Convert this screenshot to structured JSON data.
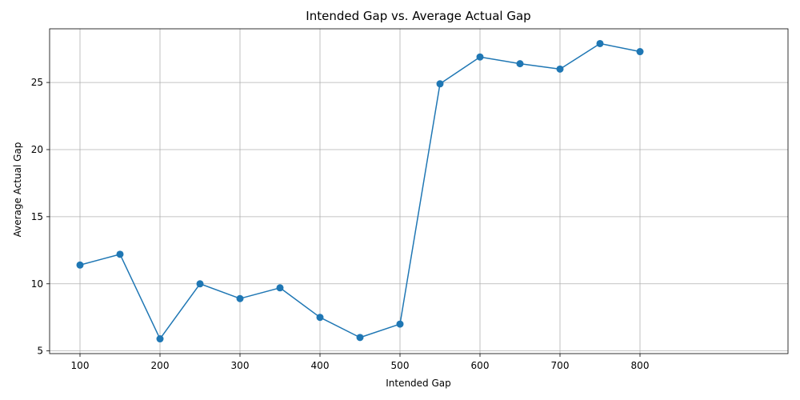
{
  "chart_data": {
    "type": "line",
    "title": "Intended Gap vs. Average Actual Gap",
    "xlabel": "Intended Gap",
    "ylabel": "Average Actual Gap",
    "xlim": [
      62,
      985
    ],
    "ylim": [
      4.8,
      29.0
    ],
    "xticks": [
      100,
      200,
      300,
      400,
      500,
      600,
      700,
      800
    ],
    "yticks": [
      5,
      10,
      15,
      20,
      25
    ],
    "grid": true,
    "marker": "circle",
    "line_color": "#1f77b4",
    "series": [
      {
        "x": [
          100,
          150,
          200,
          250,
          300,
          350,
          400,
          450,
          500,
          550,
          600,
          650,
          700,
          750,
          800
        ],
        "y": [
          11.4,
          12.2,
          5.9,
          10.0,
          8.9,
          9.7,
          7.5,
          6.0,
          7.0,
          24.9,
          26.9,
          26.4,
          26.0,
          27.9,
          27.3
        ]
      }
    ]
  }
}
